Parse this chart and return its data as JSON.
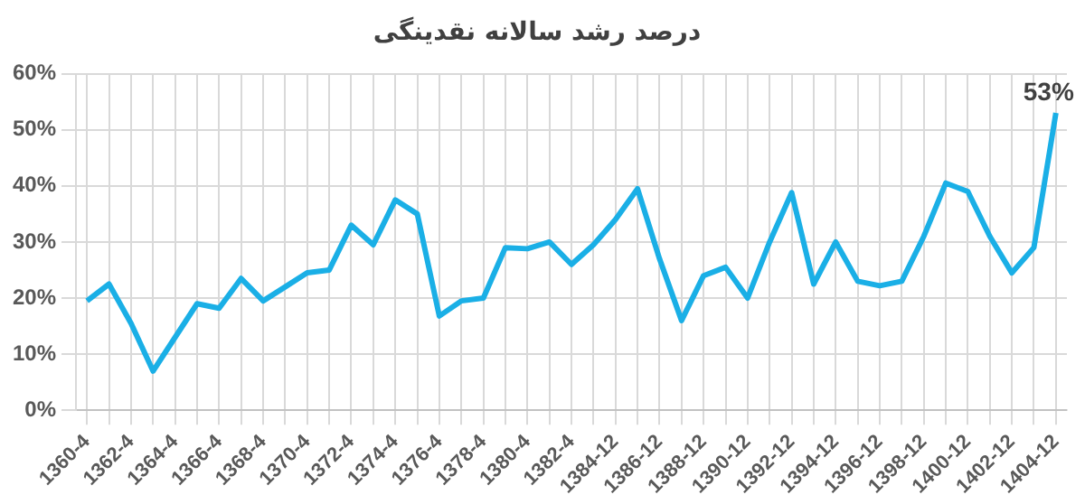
{
  "chart_data": {
    "type": "line",
    "title": "درصد رشد سالانه نقدینگی",
    "categories": [
      "1360-4",
      null,
      "1362-4",
      null,
      "1364-4",
      null,
      "1366-4",
      null,
      "1368-4",
      null,
      "1370-4",
      null,
      "1372-4",
      null,
      "1374-4",
      null,
      "1376-4",
      null,
      "1378-4",
      null,
      "1380-4",
      null,
      "1382-4",
      null,
      "1384-12",
      null,
      "1386-12",
      null,
      "1388-12",
      null,
      "1390-12",
      null,
      "1392-12",
      null,
      "1394-12",
      null,
      "1396-12",
      null,
      "1398-12",
      null,
      "1400-12",
      null,
      "1402-12",
      null,
      "1404-12"
    ],
    "values": [
      19.5,
      22.5,
      15.5,
      7,
      13,
      19,
      18.2,
      23.5,
      19.5,
      22,
      24.5,
      25,
      33,
      29.5,
      37.5,
      35,
      16.8,
      19.5,
      20,
      29,
      28.8,
      30,
      26,
      29.5,
      34,
      39.5,
      27,
      16,
      24,
      25.5,
      20,
      30,
      38.8,
      22.5,
      30,
      23,
      22.2,
      23,
      31,
      40.5,
      39,
      31,
      24.5,
      29,
      53
    ],
    "value_labels": [
      null,
      null,
      null,
      null,
      null,
      null,
      null,
      null,
      null,
      null,
      null,
      null,
      null,
      null,
      null,
      null,
      null,
      null,
      null,
      null,
      null,
      null,
      null,
      null,
      null,
      null,
      null,
      null,
      null,
      null,
      null,
      null,
      null,
      null,
      null,
      null,
      null,
      null,
      null,
      null,
      null,
      null,
      null,
      null,
      "53%"
    ],
    "color": "#1aafe6",
    "ylim": [
      0,
      60
    ],
    "yticks": [
      {
        "value": 0,
        "label": "0%"
      },
      {
        "value": 10,
        "label": "10%"
      },
      {
        "value": 20,
        "label": "20%"
      },
      {
        "value": 30,
        "label": "30%"
      },
      {
        "value": 40,
        "label": "40%"
      },
      {
        "value": 50,
        "label": "50%"
      },
      {
        "value": 60,
        "label": "60%"
      }
    ],
    "grid": true,
    "legend": false,
    "marker": "none",
    "line_style": "solid"
  }
}
